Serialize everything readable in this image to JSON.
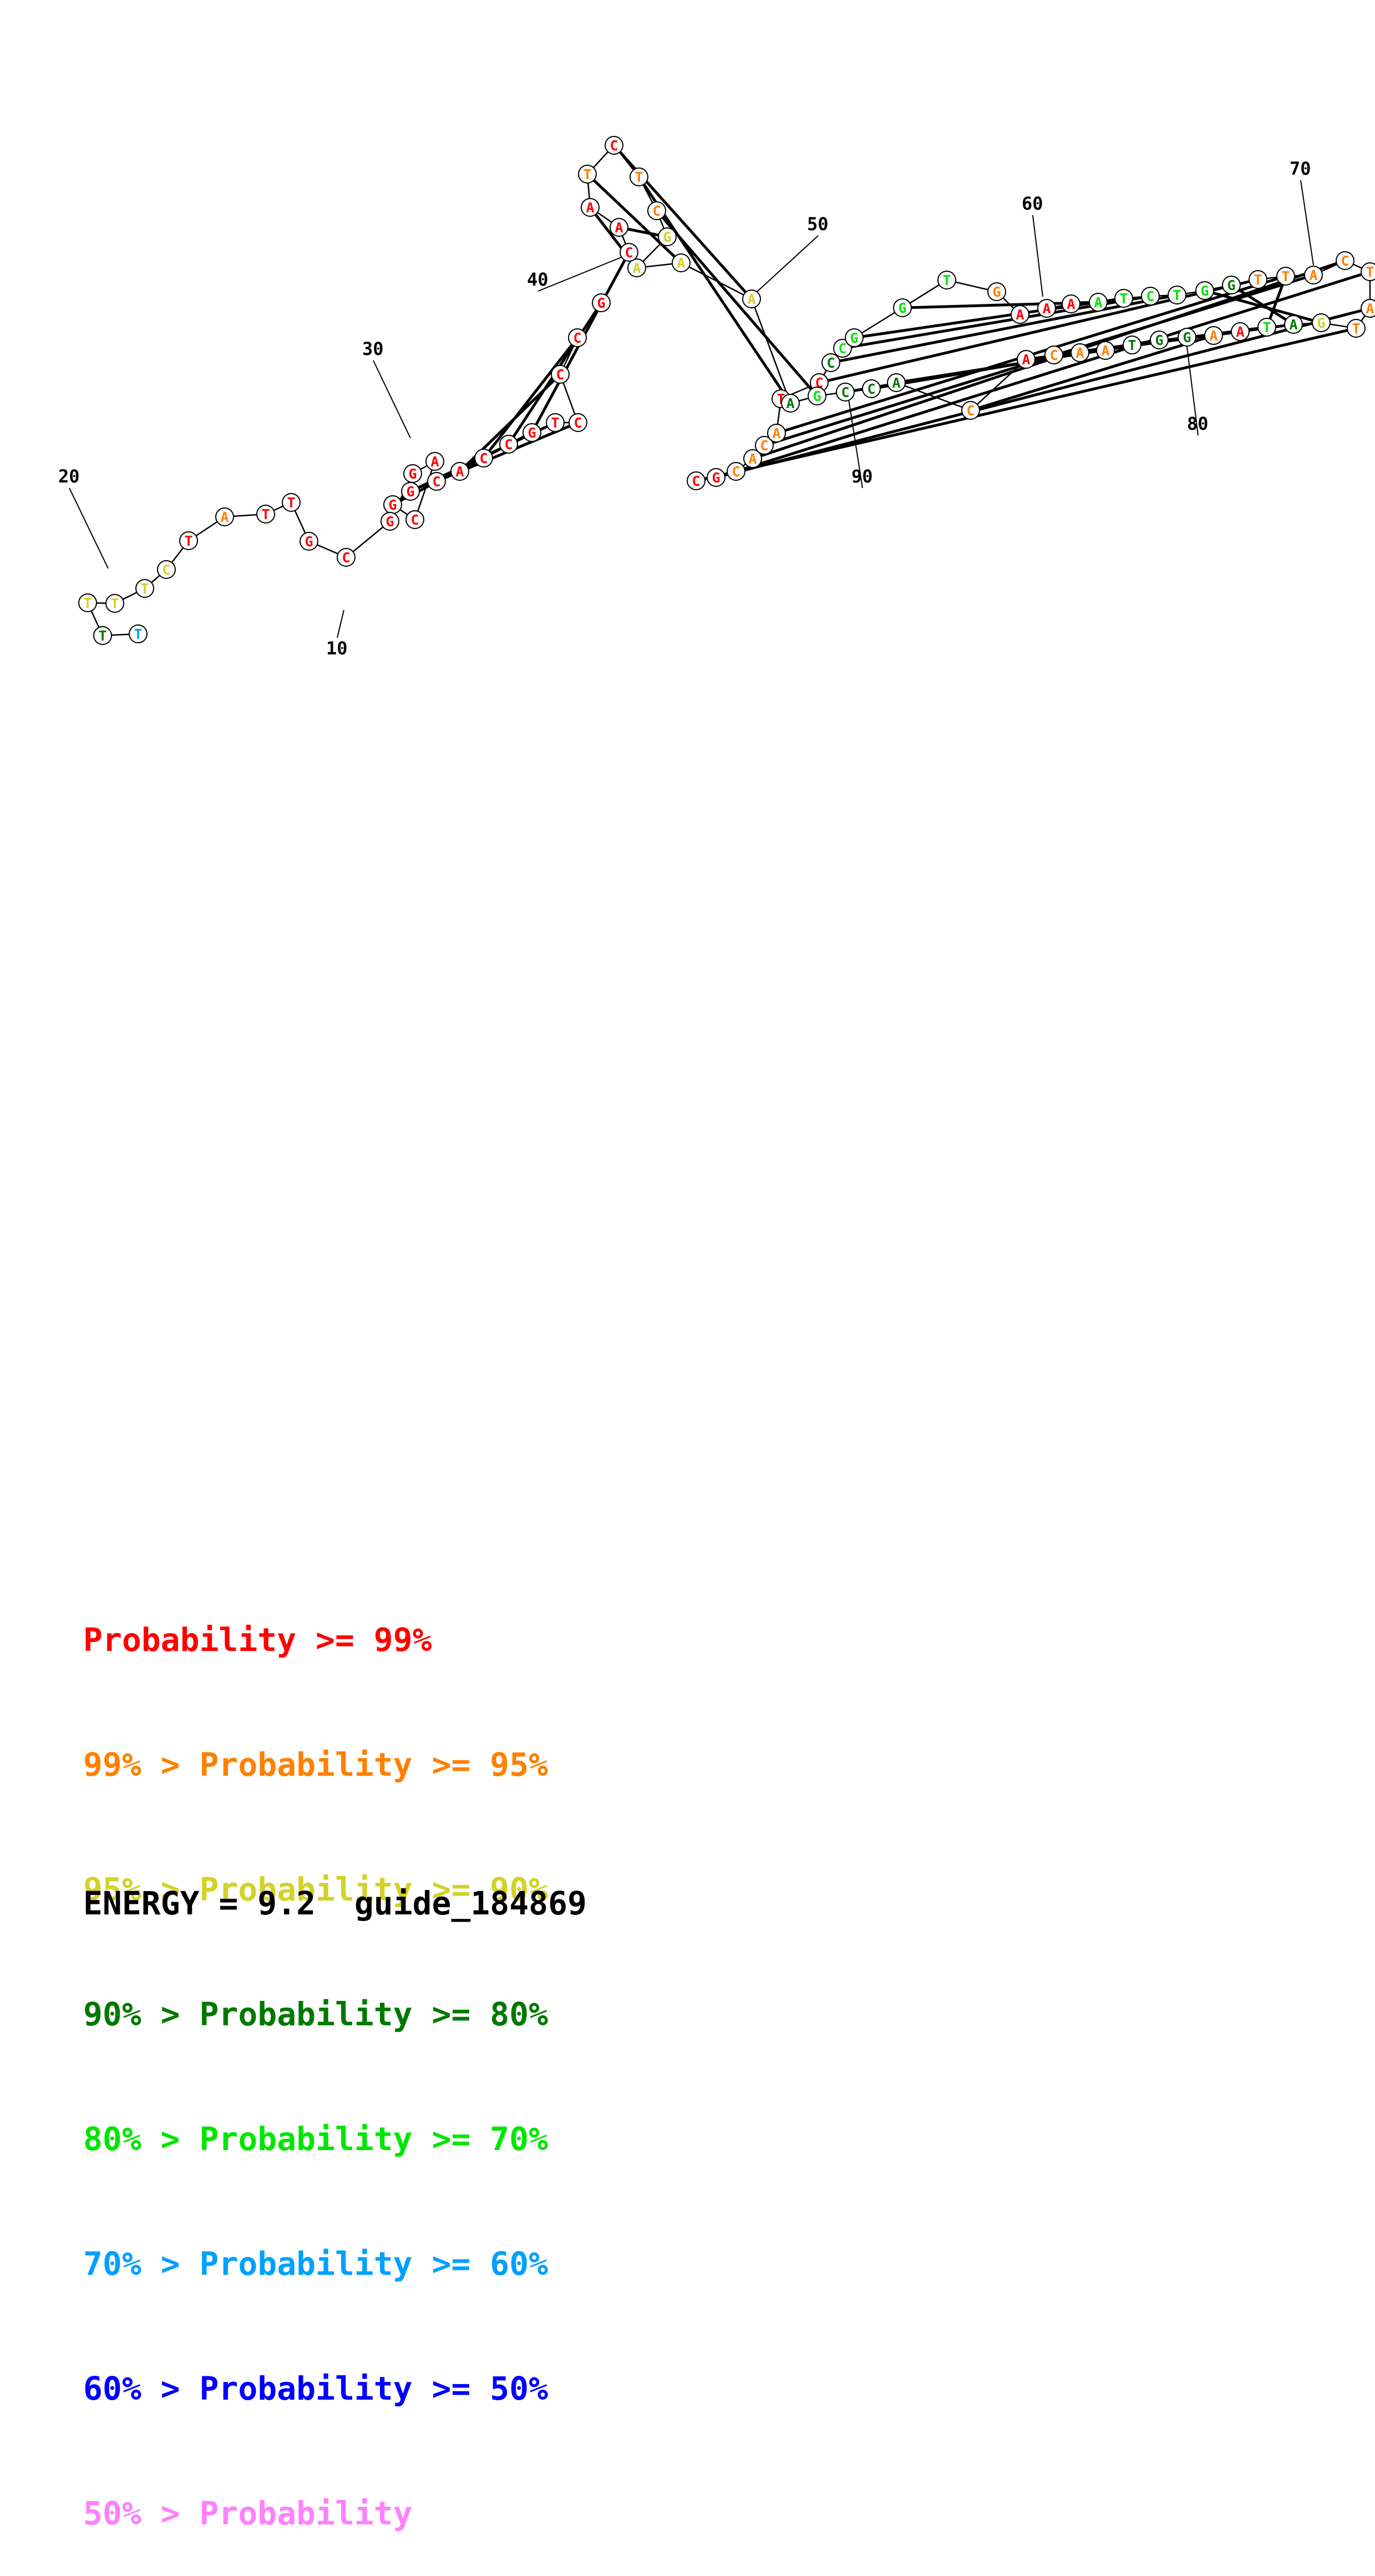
{
  "diagram": {
    "nucleotides": [
      {
        "pos": 1,
        "base": "C",
        "color": "red"
      },
      {
        "pos": 2,
        "base": "G",
        "color": "red"
      },
      {
        "pos": 3,
        "base": "C",
        "color": "orange"
      },
      {
        "pos": 4,
        "base": "A",
        "color": "orange"
      },
      {
        "pos": 5,
        "base": "C",
        "color": "orange"
      },
      {
        "pos": 6,
        "base": "A",
        "color": "orange"
      },
      {
        "pos": 7,
        "base": "T",
        "color": "red"
      },
      {
        "pos": 8,
        "base": "C",
        "color": "red"
      },
      {
        "pos": 9,
        "base": "C",
        "color": "darkgreen"
      },
      {
        "pos": 10,
        "base": "C",
        "color": "green"
      },
      {
        "pos": 11,
        "base": "G",
        "color": "green"
      },
      {
        "pos": 12,
        "base": "G",
        "color": "green"
      },
      {
        "pos": 13,
        "base": "T",
        "color": "green"
      },
      {
        "pos": 14,
        "base": "G",
        "color": "orange"
      },
      {
        "pos": 15,
        "base": "A",
        "color": "red"
      },
      {
        "pos": 16,
        "base": "A",
        "color": "red"
      },
      {
        "pos": 17,
        "base": "A",
        "color": "red"
      },
      {
        "pos": 18,
        "base": "A",
        "color": "green"
      },
      {
        "pos": 19,
        "base": "T",
        "color": "green"
      },
      {
        "pos": 20,
        "base": "C",
        "color": "green"
      },
      {
        "pos": 21,
        "base": "T",
        "color": "green"
      },
      {
        "pos": 22,
        "base": "G",
        "color": "green"
      },
      {
        "pos": 23,
        "base": "G",
        "color": "darkgreen"
      },
      {
        "pos": 24,
        "base": "T",
        "color": "orange"
      },
      {
        "pos": 25,
        "base": "T",
        "color": "orange"
      },
      {
        "pos": 26,
        "base": "A",
        "color": "orange"
      },
      {
        "pos": 27,
        "base": "C",
        "color": "orange"
      },
      {
        "pos": 28,
        "base": "T",
        "color": "orange"
      },
      {
        "pos": 29,
        "base": "A",
        "color": "orange"
      },
      {
        "pos": 30,
        "base": "T",
        "color": "orange"
      },
      {
        "pos": 31,
        "base": "G",
        "color": "yellow"
      },
      {
        "pos": 32,
        "base": "A",
        "color": "darkgreen"
      },
      {
        "pos": 33,
        "base": "T",
        "color": "green"
      },
      {
        "pos": 34,
        "base": "A",
        "color": "red"
      },
      {
        "pos": 35,
        "base": "A",
        "color": "orange"
      },
      {
        "pos": 36,
        "base": "G",
        "color": "darkgreen"
      },
      {
        "pos": 37,
        "base": "G",
        "color": "darkgreen"
      },
      {
        "pos": 38,
        "base": "T",
        "color": "darkgreen"
      },
      {
        "pos": 39,
        "base": "A",
        "color": "orange"
      },
      {
        "pos": 40,
        "base": "A",
        "color": "orange"
      },
      {
        "pos": 41,
        "base": "C",
        "color": "orange"
      },
      {
        "pos": 42,
        "base": "A",
        "color": "red"
      },
      {
        "pos": 43,
        "base": "C",
        "color": "orange"
      },
      {
        "pos": 44,
        "base": "A",
        "color": "darkgreen"
      },
      {
        "pos": 45,
        "base": "C",
        "color": "darkgreen"
      },
      {
        "pos": 46,
        "base": "C",
        "color": "darkgreen"
      },
      {
        "pos": 47,
        "base": "G",
        "color": "green"
      },
      {
        "pos": 48,
        "base": "A",
        "color": "darkgreen"
      },
      {
        "pos": 49,
        "base": "A",
        "color": "yellow"
      },
      {
        "pos": 50,
        "base": "A",
        "color": "yellow"
      },
      {
        "pos": 51,
        "base": "A",
        "color": "yellow"
      },
      {
        "pos": 52,
        "base": "G",
        "color": "yellow"
      },
      {
        "pos": 53,
        "base": "C",
        "color": "orange"
      },
      {
        "pos": 54,
        "base": "T",
        "color": "orange"
      },
      {
        "pos": 55,
        "base": "C",
        "color": "red"
      },
      {
        "pos": 56,
        "base": "T",
        "color": "orange"
      },
      {
        "pos": 57,
        "base": "A",
        "color": "red"
      },
      {
        "pos": 58,
        "base": "A",
        "color": "red"
      },
      {
        "pos": 59,
        "base": "C",
        "color": "red"
      },
      {
        "pos": 60,
        "base": "G",
        "color": "red"
      },
      {
        "pos": 61,
        "base": "C",
        "color": "red"
      },
      {
        "pos": 62,
        "base": "C",
        "color": "red"
      },
      {
        "pos": 63,
        "base": "C",
        "color": "red"
      },
      {
        "pos": 64,
        "base": "T",
        "color": "red"
      },
      {
        "pos": 65,
        "base": "G",
        "color": "red"
      },
      {
        "pos": 66,
        "base": "C",
        "color": "red"
      },
      {
        "pos": 67,
        "base": "C",
        "color": "red"
      },
      {
        "pos": 68,
        "base": "A",
        "color": "red"
      },
      {
        "pos": 69,
        "base": "C",
        "color": "red"
      },
      {
        "pos": 70,
        "base": "G",
        "color": "red"
      },
      {
        "pos": 71,
        "base": "G",
        "color": "red"
      },
      {
        "pos": 72,
        "base": "C",
        "color": "red"
      },
      {
        "pos": 73,
        "base": "A",
        "color": "red"
      },
      {
        "pos": 74,
        "base": "G",
        "color": "red"
      },
      {
        "pos": 75,
        "base": "G",
        "color": "red"
      },
      {
        "pos": 76,
        "base": "C",
        "color": "red"
      },
      {
        "pos": 77,
        "base": "G",
        "color": "red"
      },
      {
        "pos": 78,
        "base": "T",
        "color": "red"
      },
      {
        "pos": 79,
        "base": "T",
        "color": "red"
      },
      {
        "pos": 80,
        "base": "A",
        "color": "orange"
      },
      {
        "pos": 81,
        "base": "T",
        "color": "red"
      },
      {
        "pos": 82,
        "base": "C",
        "color": "yellow"
      },
      {
        "pos": 83,
        "base": "T",
        "color": "yellow"
      },
      {
        "pos": 84,
        "base": "T",
        "color": "yellow"
      },
      {
        "pos": 85,
        "base": "T",
        "color": "yellow"
      },
      {
        "pos": 86,
        "base": "T",
        "color": "darkgreen"
      },
      {
        "pos": 87,
        "base": "T",
        "color": "blue"
      }
    ],
    "pairs": [
      [
        11,
        19
      ],
      [
        12,
        18
      ],
      [
        9,
        21
      ],
      [
        10,
        20
      ],
      [
        8,
        24
      ],
      [
        6,
        25
      ],
      [
        5,
        26
      ],
      [
        4,
        27
      ],
      [
        3,
        28
      ],
      [
        2,
        29
      ],
      [
        1,
        30
      ],
      [
        22,
        31
      ],
      [
        23,
        32
      ],
      [
        25,
        33
      ],
      [
        32,
        40
      ],
      [
        33,
        41
      ],
      [
        34,
        42
      ],
      [
        35,
        43
      ],
      [
        36,
        44
      ],
      [
        37,
        45
      ],
      [
        38,
        46
      ],
      [
        47,
        53
      ],
      [
        48,
        54
      ],
      [
        49,
        55
      ],
      [
        50,
        56
      ],
      [
        51,
        57
      ],
      [
        52,
        58
      ],
      [
        59,
        65
      ],
      [
        60,
        66
      ],
      [
        61,
        67
      ],
      [
        62,
        68
      ],
      [
        63,
        69
      ],
      [
        64,
        70
      ],
      [
        65,
        71
      ]
    ],
    "tick_labels": [
      "10",
      "20",
      "30",
      "40",
      "50",
      "60",
      "70",
      "80",
      "90"
    ]
  },
  "legend": [
    {
      "prefix": "",
      "label": "Probability >= 99%",
      "color": "#ff0000"
    },
    {
      "prefix": "99% > ",
      "label": "Probability >= 95%",
      "color": "#ff8000"
    },
    {
      "prefix": "95% > ",
      "label": "Probability >= 90%",
      "color": "#d2d228"
    },
    {
      "prefix": "90% > ",
      "label": "Probability >= 80%",
      "color": "#007800"
    },
    {
      "prefix": "80% > ",
      "label": "Probability >= 70%",
      "color": "#00e600"
    },
    {
      "prefix": "70% > ",
      "label": "Probability >= 60%",
      "color": "#00a0ff"
    },
    {
      "prefix": "60% > ",
      "label": "Probability >= 50%",
      "color": "#0000ff"
    },
    {
      "prefix": "50% > ",
      "label": "Probability",
      "color": "#ff80ff"
    }
  ],
  "colors": {
    "red": "#ff0000",
    "orange": "#ff8000",
    "yellow": "#d2d228",
    "darkgreen": "#007800",
    "green": "#00e600",
    "blue": "#00a0ff"
  },
  "footer": {
    "energy_text": "ENERGY = 9.2",
    "guide_name": "guide_184869"
  }
}
